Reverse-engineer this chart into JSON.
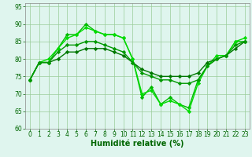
{
  "series": [
    {
      "x": [
        0,
        1,
        2,
        3,
        4,
        5,
        6,
        7,
        8,
        9,
        10,
        11,
        12,
        13,
        14,
        15,
        16,
        17,
        18,
        19,
        20,
        21,
        22,
        23
      ],
      "y": [
        74,
        79,
        79,
        83,
        87,
        87,
        90,
        88,
        87,
        87,
        86,
        80,
        69,
        72,
        67,
        69,
        67,
        66,
        74,
        78,
        80,
        81,
        85,
        85
      ],
      "color": "#00bb00",
      "marker": "D",
      "markersize": 2.2,
      "linewidth": 1.0
    },
    {
      "x": [
        0,
        1,
        2,
        3,
        4,
        5,
        6,
        7,
        8,
        9,
        10,
        11,
        12,
        13,
        14,
        15,
        16,
        17,
        18,
        19,
        20,
        21,
        22,
        23
      ],
      "y": [
        74,
        79,
        80,
        83,
        86,
        87,
        89,
        88,
        87,
        87,
        86,
        80,
        70,
        71,
        67,
        68,
        67,
        65,
        73,
        78,
        81,
        81,
        85,
        86
      ],
      "color": "#00dd00",
      "marker": "D",
      "markersize": 2.2,
      "linewidth": 1.0
    },
    {
      "x": [
        0,
        1,
        2,
        3,
        4,
        5,
        6,
        7,
        8,
        9,
        10,
        11,
        12,
        13,
        14,
        15,
        16,
        17,
        18,
        19,
        20,
        21,
        22,
        23
      ],
      "y": [
        74,
        79,
        79,
        80,
        82,
        82,
        83,
        83,
        83,
        82,
        81,
        79,
        77,
        76,
        75,
        75,
        75,
        75,
        76,
        79,
        80,
        81,
        83,
        85
      ],
      "color": "#007700",
      "marker": "D",
      "markersize": 2.2,
      "linewidth": 1.0
    },
    {
      "x": [
        0,
        1,
        2,
        3,
        4,
        5,
        6,
        7,
        8,
        9,
        10,
        11,
        12,
        13,
        14,
        15,
        16,
        17,
        18,
        19,
        20,
        21,
        22,
        23
      ],
      "y": [
        74,
        79,
        79,
        82,
        84,
        84,
        85,
        85,
        84,
        83,
        82,
        79,
        76,
        75,
        74,
        74,
        73,
        73,
        74,
        78,
        80,
        81,
        84,
        85
      ],
      "color": "#009900",
      "marker": "D",
      "markersize": 2.2,
      "linewidth": 1.0
    }
  ],
  "xlabel": "Humidité relative (%)",
  "xlim": [
    -0.5,
    23.5
  ],
  "ylim": [
    60,
    96
  ],
  "yticks": [
    60,
    65,
    70,
    75,
    80,
    85,
    90,
    95
  ],
  "xticks": [
    0,
    1,
    2,
    3,
    4,
    5,
    6,
    7,
    8,
    9,
    10,
    11,
    12,
    13,
    14,
    15,
    16,
    17,
    18,
    19,
    20,
    21,
    22,
    23
  ],
  "grid_color": "#99cc99",
  "bg_color": "#dff5ee",
  "tick_color": "#006600",
  "xlabel_color": "#006600",
  "xlabel_fontsize": 7,
  "tick_fontsize": 5.5
}
